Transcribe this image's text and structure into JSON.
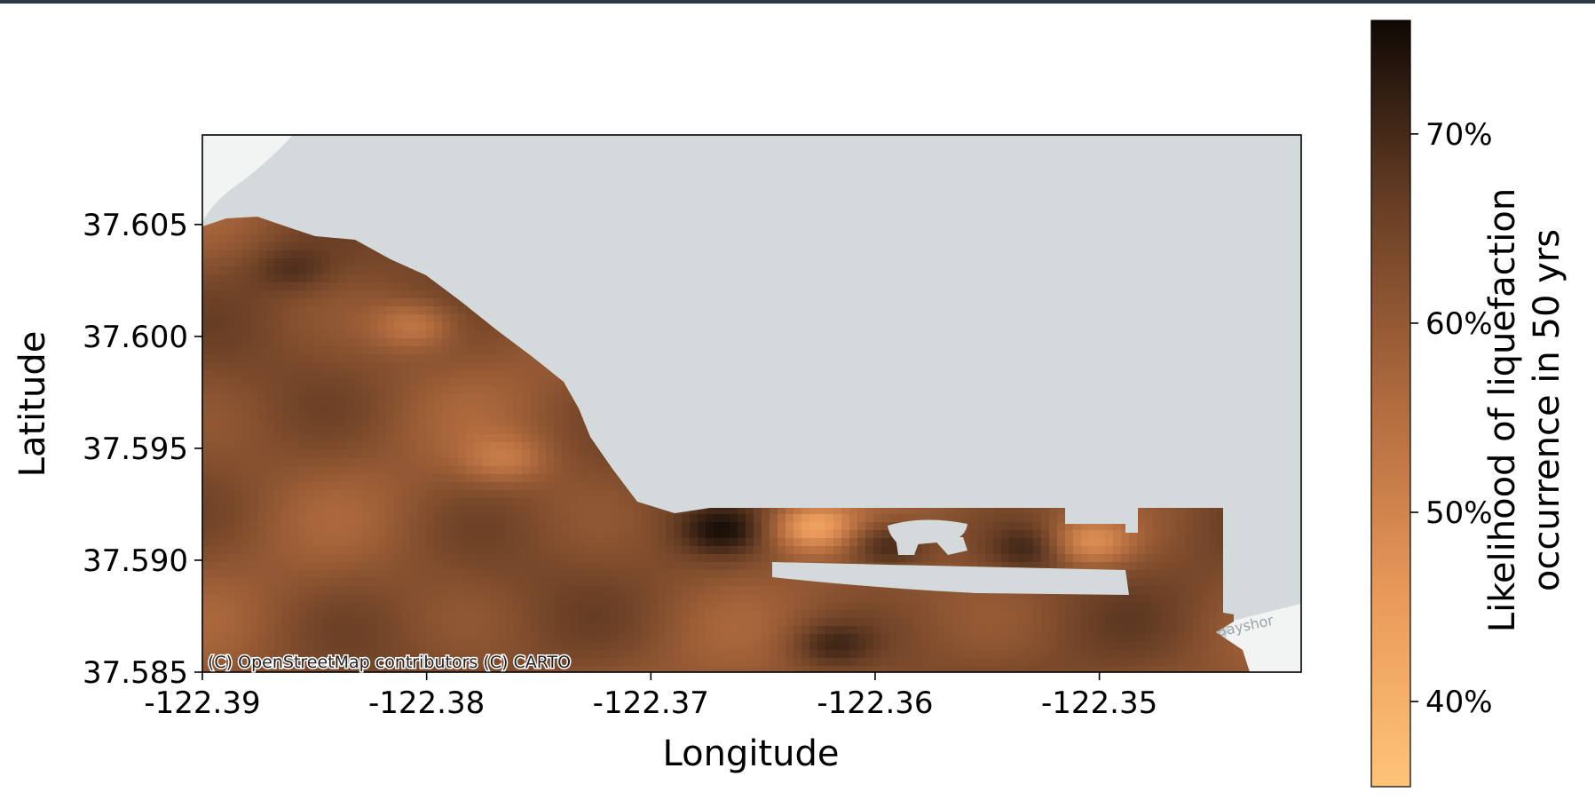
{
  "xlabel": "Longitude",
  "ylabel": "Latitude",
  "xticks": [
    {
      "value": -122.39,
      "label": "-122.39"
    },
    {
      "value": -122.38,
      "label": "-122.38"
    },
    {
      "value": -122.37,
      "label": "-122.37"
    },
    {
      "value": -122.36,
      "label": "-122.36"
    },
    {
      "value": -122.35,
      "label": "-122.35"
    }
  ],
  "yticks": [
    {
      "value": 37.585,
      "label": "37.585"
    },
    {
      "value": 37.59,
      "label": "37.590"
    },
    {
      "value": 37.595,
      "label": "37.595"
    },
    {
      "value": 37.6,
      "label": "37.600"
    },
    {
      "value": 37.605,
      "label": "37.605"
    }
  ],
  "xlim": [
    -122.39,
    -122.341
  ],
  "ylim": [
    37.585,
    37.609
  ],
  "attribution": "(C) OpenStreetMap contributors (C) CARTO",
  "basemap_label": "Bayshor",
  "colors": {
    "water": "#d4dadc",
    "land": "#f2f3f3",
    "low": "#ffc477",
    "high": "#1a1008"
  },
  "colorbar": {
    "label_line1": "Likelihood of liquefaction",
    "label_line2": "occurrence in 50 yrs",
    "range": [
      0.355,
      0.76
    ],
    "ticks": [
      {
        "value": 0.4,
        "label": "40%"
      },
      {
        "value": 0.5,
        "label": "50%"
      },
      {
        "value": 0.6,
        "label": "60%"
      },
      {
        "value": 0.7,
        "label": "70%"
      }
    ]
  },
  "chart_data": {
    "type": "heatmap",
    "xlabel": "Longitude",
    "ylabel": "Latitude",
    "xlim": [
      -122.39,
      -122.341
    ],
    "ylim": [
      37.585,
      37.609
    ],
    "background_level": 0.62,
    "hotspots": [
      {
        "lon": -122.3628,
        "lat": 37.5915,
        "value": 0.45
      },
      {
        "lon": -122.3505,
        "lat": 37.5908,
        "value": 0.48
      },
      {
        "lon": -122.3805,
        "lat": 37.6005,
        "value": 0.52
      },
      {
        "lon": -122.3765,
        "lat": 37.5945,
        "value": 0.54
      },
      {
        "lon": -122.3595,
        "lat": 37.5907,
        "value": 0.74
      },
      {
        "lon": -122.3668,
        "lat": 37.5913,
        "value": 0.71
      },
      {
        "lon": -122.353,
        "lat": 37.5905,
        "value": 0.7
      },
      {
        "lon": -122.386,
        "lat": 37.603,
        "value": 0.68
      },
      {
        "lon": -122.362,
        "lat": 37.5862,
        "value": 0.7
      }
    ]
  }
}
